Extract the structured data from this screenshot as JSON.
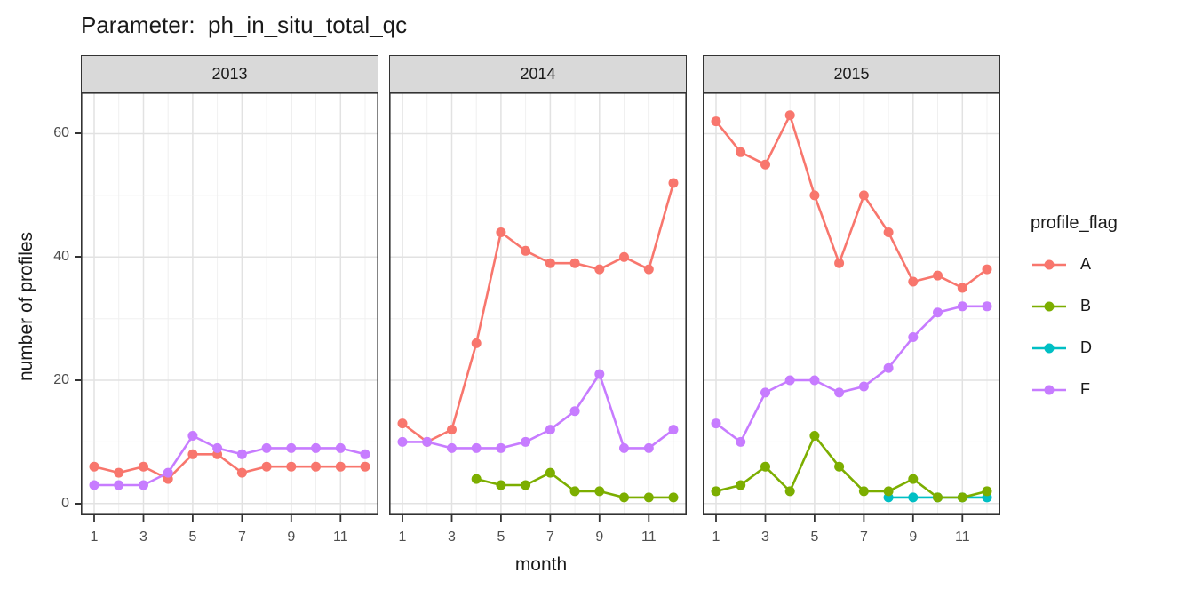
{
  "chart_data": {
    "type": "line",
    "title": "Parameter:  ph_in_situ_total_qc",
    "xlabel": "month",
    "ylabel": "number of profiles",
    "x_ticks": [
      1,
      3,
      5,
      7,
      9,
      11
    ],
    "y_ticks": [
      0,
      20,
      40,
      60
    ],
    "y_minor_ticks": [
      10,
      30,
      50
    ],
    "xlim": [
      0.45,
      12.55
    ],
    "ylim": [
      -1.9,
      66.7
    ],
    "grid": true,
    "legend_position": "right",
    "facets": [
      {
        "label": "2013",
        "series": [
          {
            "name": "A",
            "color": "#F8766D",
            "months": [
              1,
              2,
              3,
              4,
              5,
              6,
              7,
              8,
              9,
              10,
              11,
              12
            ],
            "values": [
              6,
              5,
              6,
              4,
              8,
              8,
              5,
              6,
              6,
              6,
              6,
              6
            ]
          },
          {
            "name": "F",
            "color": "#C77CFF",
            "months": [
              1,
              2,
              3,
              4,
              5,
              6,
              7,
              8,
              9,
              10,
              11,
              12
            ],
            "values": [
              3,
              3,
              3,
              5,
              11,
              9,
              8,
              9,
              9,
              9,
              9,
              8
            ]
          }
        ]
      },
      {
        "label": "2014",
        "series": [
          {
            "name": "A",
            "color": "#F8766D",
            "months": [
              1,
              2,
              3,
              4,
              5,
              6,
              7,
              8,
              9,
              10,
              11,
              12
            ],
            "values": [
              13,
              10,
              12,
              26,
              44,
              41,
              39,
              39,
              38,
              40,
              38,
              52
            ]
          },
          {
            "name": "B",
            "color": "#7CAE00",
            "months": [
              4,
              5,
              6,
              7,
              8,
              9,
              10,
              11,
              12
            ],
            "values": [
              4,
              3,
              3,
              5,
              2,
              2,
              1,
              1,
              1
            ]
          },
          {
            "name": "F",
            "color": "#C77CFF",
            "months": [
              1,
              2,
              3,
              4,
              5,
              6,
              7,
              8,
              9,
              10,
              11,
              12
            ],
            "values": [
              10,
              10,
              9,
              9,
              9,
              10,
              12,
              15,
              21,
              9,
              9,
              12
            ]
          }
        ]
      },
      {
        "label": "2015",
        "series": [
          {
            "name": "A",
            "color": "#F8766D",
            "months": [
              1,
              2,
              3,
              4,
              5,
              6,
              7,
              8,
              9,
              10,
              11,
              12
            ],
            "values": [
              62,
              57,
              55,
              63,
              50,
              39,
              50,
              44,
              36,
              37,
              35,
              38
            ]
          },
          {
            "name": "D",
            "color": "#00BFC4",
            "months": [
              8,
              9,
              10,
              11,
              12
            ],
            "values": [
              1,
              1,
              1,
              1,
              1
            ]
          },
          {
            "name": "B",
            "color": "#7CAE00",
            "months": [
              1,
              2,
              3,
              4,
              5,
              6,
              7,
              8,
              9,
              10,
              11,
              12
            ],
            "values": [
              2,
              3,
              6,
              2,
              11,
              6,
              2,
              2,
              4,
              1,
              1,
              2
            ]
          },
          {
            "name": "F",
            "color": "#C77CFF",
            "months": [
              1,
              2,
              3,
              4,
              5,
              6,
              7,
              8,
              9,
              10,
              11,
              12
            ],
            "values": [
              13,
              10,
              18,
              20,
              20,
              18,
              19,
              22,
              27,
              31,
              32,
              32
            ]
          }
        ]
      }
    ]
  },
  "legend": {
    "title": "profile_flag",
    "entries": [
      {
        "label": "A",
        "color": "#F8766D"
      },
      {
        "label": "B",
        "color": "#7CAE00"
      },
      {
        "label": "D",
        "color": "#00BFC4"
      },
      {
        "label": "F",
        "color": "#C77CFF"
      }
    ]
  },
  "colors": {
    "background": "#FFFFFF",
    "strip_fill": "#D9D9D9",
    "panel_border": "#333333",
    "grid_major": "#E2E2E2",
    "grid_minor": "#F0F0F0",
    "tick_mark": "#333333",
    "tick_label": "#4D4D4D",
    "text": "#1A1A1A"
  }
}
